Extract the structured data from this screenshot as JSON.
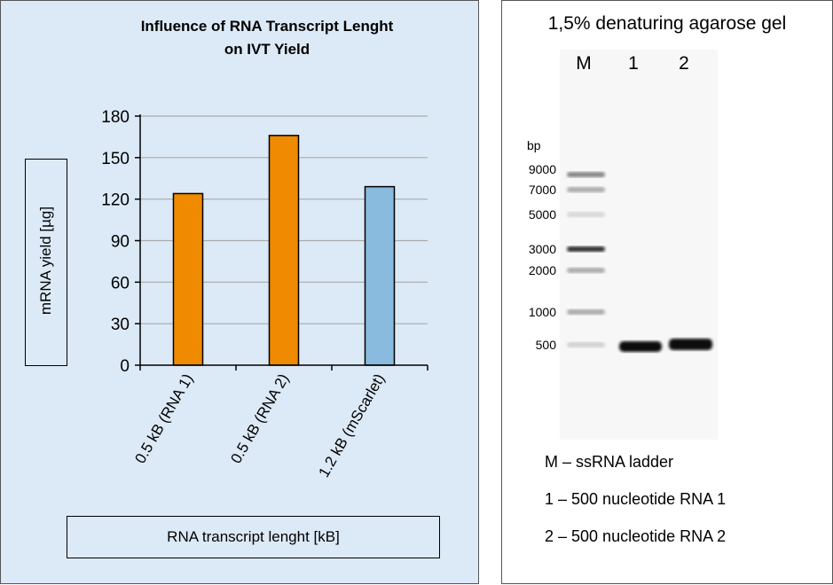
{
  "chart_data": {
    "type": "bar",
    "title": "Influence of RNA Transcript Lenght on IVT Yield",
    "title_lines": [
      "Influence of RNA Transcript Lenght",
      "on IVT Yield"
    ],
    "categories": [
      "0.5 kB  (RNA 1)",
      "0.5 kB  (RNA 2)",
      "1.2 kB  (mScarlet)"
    ],
    "values": [
      124,
      166,
      129
    ],
    "colors": [
      "#f08a00",
      "#f08a00",
      "#88bbdd"
    ],
    "xlabel": "RNA transcript lenght [kB]",
    "ylabel": "mRNA yield [µg]",
    "ylim": [
      0,
      180
    ],
    "yticks": [
      0,
      30,
      60,
      90,
      120,
      150,
      180
    ],
    "grid": true
  },
  "gel": {
    "title": "1,5% denaturing agarose gel",
    "lanes": [
      "M",
      "1",
      "2"
    ],
    "unit": "bp",
    "ladder": [
      "9000",
      "7000",
      "5000",
      "3000",
      "2000",
      "1000",
      "500"
    ],
    "legend": [
      "M – ssRNA ladder",
      "1 – 500 nucleotide RNA 1",
      "2 – 500 nucleotide RNA 2"
    ]
  }
}
